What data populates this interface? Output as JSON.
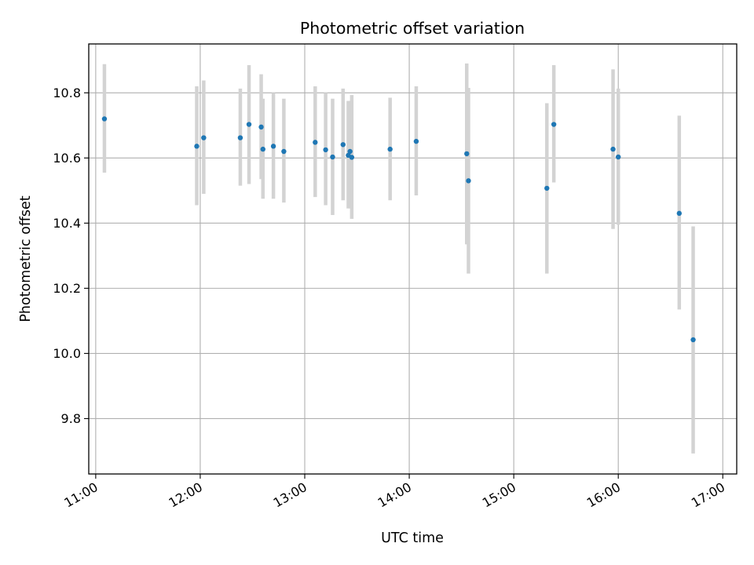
{
  "chart_data": {
    "type": "scatter",
    "title": "Photometric offset variation",
    "xlabel": "UTC time",
    "ylabel": "Photometric offset",
    "x_unit": "minutes",
    "xlim": [
      656,
      1028
    ],
    "ylim": [
      9.63,
      10.95
    ],
    "x_ticks": [
      {
        "value": 660,
        "label": "11:00"
      },
      {
        "value": 720,
        "label": "12:00"
      },
      {
        "value": 780,
        "label": "13:00"
      },
      {
        "value": 840,
        "label": "14:00"
      },
      {
        "value": 900,
        "label": "15:00"
      },
      {
        "value": 960,
        "label": "16:00"
      },
      {
        "value": 1020,
        "label": "17:00"
      }
    ],
    "y_ticks": [
      {
        "value": 9.8,
        "label": "9.8"
      },
      {
        "value": 10.0,
        "label": "10.0"
      },
      {
        "value": 10.2,
        "label": "10.2"
      },
      {
        "value": 10.4,
        "label": "10.4"
      },
      {
        "value": 10.6,
        "label": "10.6"
      },
      {
        "value": 10.8,
        "label": "10.8"
      }
    ],
    "grid": true,
    "marker_color": "#1f77b4",
    "errorbar_color": "#d3d3d3",
    "series": [
      {
        "points": [
          {
            "t": "11:05",
            "y": 10.72,
            "ylow": 10.555,
            "yhigh": 10.888
          },
          {
            "t": "11:58",
            "y": 10.636,
            "ylow": 10.455,
            "yhigh": 10.82
          },
          {
            "t": "12:02",
            "y": 10.662,
            "ylow": 10.49,
            "yhigh": 10.838
          },
          {
            "t": "12:23",
            "y": 10.662,
            "ylow": 10.515,
            "yhigh": 10.813
          },
          {
            "t": "12:28",
            "y": 10.703,
            "ylow": 10.52,
            "yhigh": 10.885
          },
          {
            "t": "12:35",
            "y": 10.695,
            "ylow": 10.535,
            "yhigh": 10.857
          },
          {
            "t": "12:36",
            "y": 10.627,
            "ylow": 10.475,
            "yhigh": 10.782
          },
          {
            "t": "12:42",
            "y": 10.636,
            "ylow": 10.475,
            "yhigh": 10.8
          },
          {
            "t": "12:48",
            "y": 10.62,
            "ylow": 10.463,
            "yhigh": 10.782
          },
          {
            "t": "13:06",
            "y": 10.648,
            "ylow": 10.48,
            "yhigh": 10.82
          },
          {
            "t": "13:12",
            "y": 10.625,
            "ylow": 10.455,
            "yhigh": 10.8
          },
          {
            "t": "13:16",
            "y": 10.603,
            "ylow": 10.425,
            "yhigh": 10.782
          },
          {
            "t": "13:22",
            "y": 10.641,
            "ylow": 10.47,
            "yhigh": 10.813
          },
          {
            "t": "13:25",
            "y": 10.608,
            "ylow": 10.445,
            "yhigh": 10.775
          },
          {
            "t": "13:26",
            "y": 10.62,
            "ylow": 10.445,
            "yhigh": 10.775
          },
          {
            "t": "13:27",
            "y": 10.602,
            "ylow": 10.413,
            "yhigh": 10.793
          },
          {
            "t": "13:49",
            "y": 10.627,
            "ylow": 10.47,
            "yhigh": 10.785
          },
          {
            "t": "14:04",
            "y": 10.651,
            "ylow": 10.485,
            "yhigh": 10.82
          },
          {
            "t": "14:33",
            "y": 10.613,
            "ylow": 10.335,
            "yhigh": 10.89
          },
          {
            "t": "14:34",
            "y": 10.53,
            "ylow": 10.245,
            "yhigh": 10.815
          },
          {
            "t": "15:19",
            "y": 10.507,
            "ylow": 10.245,
            "yhigh": 10.768
          },
          {
            "t": "15:23",
            "y": 10.703,
            "ylow": 10.525,
            "yhigh": 10.885
          },
          {
            "t": "15:57",
            "y": 10.627,
            "ylow": 10.382,
            "yhigh": 10.872
          },
          {
            "t": "16:00",
            "y": 10.603,
            "ylow": 10.395,
            "yhigh": 10.813
          },
          {
            "t": "16:35",
            "y": 10.43,
            "ylow": 10.135,
            "yhigh": 10.73
          },
          {
            "t": "16:43",
            "y": 10.042,
            "ylow": 9.693,
            "yhigh": 10.39
          }
        ]
      }
    ]
  }
}
